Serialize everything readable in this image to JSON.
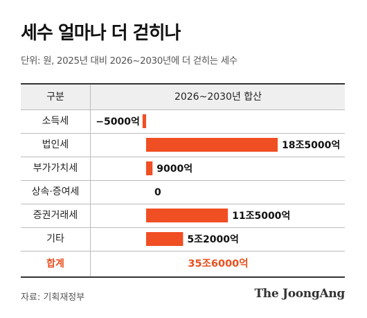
{
  "title": "세수 얼마나 더 걷히나",
  "subtitle": "단위: 원, 2025년 대비 2026~2030년에 더 걷히는 세수",
  "table": {
    "header_category": "구분",
    "header_value": "2026~2030년 합산",
    "total_label": "합계",
    "total_value": "35조6000억"
  },
  "chart_data": {
    "type": "bar",
    "orientation": "horizontal",
    "categories": [
      "소득세",
      "법인세",
      "부가가치세",
      "상속·증여세",
      "증권거래세",
      "기타"
    ],
    "values": [
      -5000,
      185000,
      9000,
      0,
      115000,
      52000
    ],
    "value_unit": "억 원",
    "value_labels": [
      "−5000억",
      "18조5000억",
      "9000억",
      "0",
      "11조5000억",
      "5조2000억"
    ],
    "bar_color": "#f04e23"
  },
  "source": "자료: 기획재정부",
  "logo": "The JoongAng"
}
